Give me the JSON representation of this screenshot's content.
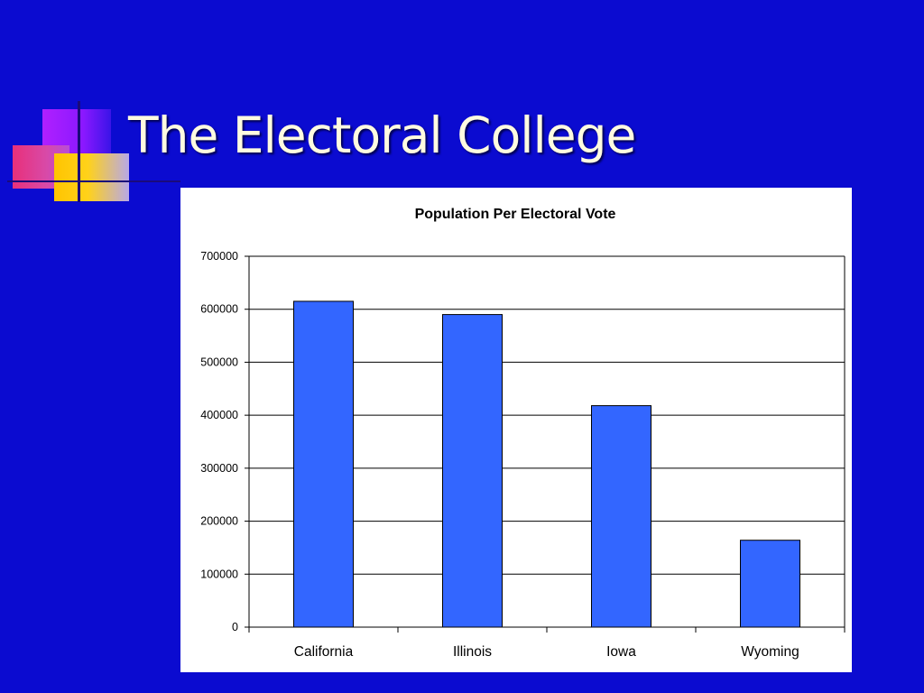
{
  "slide": {
    "title": "The Electoral College",
    "background_color": "#0b0bd0"
  },
  "chart_data": {
    "type": "bar",
    "title": "Population Per Electoral Vote",
    "xlabel": "",
    "ylabel": "",
    "categories": [
      "California",
      "Illinois",
      "Iowa",
      "Wyoming"
    ],
    "series": [
      {
        "values": [
          615000,
          590000,
          418000,
          164000
        ]
      }
    ],
    "ylim": [
      0,
      700000
    ],
    "yticks": [
      "0",
      "100000",
      "200000",
      "300000",
      "400000",
      "500000",
      "600000",
      "700000"
    ],
    "grid": true,
    "legend": "none",
    "bar_color": "#3366ff"
  }
}
